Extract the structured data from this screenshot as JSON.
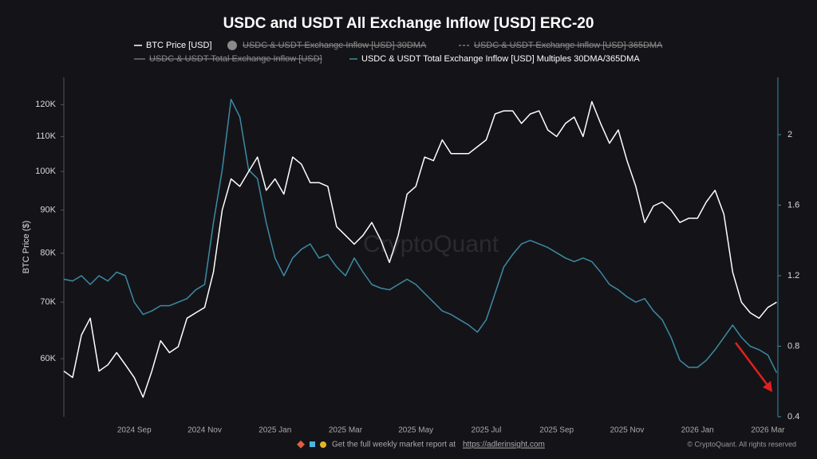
{
  "chart_data": {
    "type": "line",
    "title": "USDC and USDT All Exchange Inflow [USD] ERC-20",
    "y_label": "BTC Price ($)",
    "watermark": "CryptoQuant",
    "footer": {
      "text": "Get the full weekly market report at",
      "link": "https://adlerinsight.com",
      "copyright": "© CryptoQuant. All rights reserved"
    },
    "log_y": true,
    "categories": [
      null,
      null,
      null,
      null,
      null,
      null,
      null,
      null,
      "2024 Sep",
      null,
      null,
      null,
      null,
      null,
      null,
      null,
      "2024 Nov",
      null,
      null,
      null,
      null,
      null,
      null,
      null,
      "2025 Jan",
      null,
      null,
      null,
      null,
      null,
      null,
      null,
      "2025 Mar",
      null,
      null,
      null,
      null,
      null,
      null,
      null,
      "2025 May",
      null,
      null,
      null,
      null,
      null,
      null,
      null,
      "2025 Jul",
      null,
      null,
      null,
      null,
      null,
      null,
      null,
      "2025 Sep",
      null,
      null,
      null,
      null,
      null,
      null,
      null,
      "2025 Nov",
      null,
      null,
      null,
      null,
      null,
      null,
      null,
      "2026 Jan",
      null,
      null,
      null,
      null,
      null,
      null,
      null,
      "2026 Mar",
      null
    ],
    "series": [
      {
        "name": "BTC Price [USD]",
        "color": "#ffffff",
        "axis": "y",
        "values": [
          58000,
          57000,
          64000,
          67000,
          58000,
          59000,
          61000,
          59000,
          57000,
          54000,
          58000,
          63000,
          61000,
          62000,
          67000,
          68000,
          69000,
          76000,
          90000,
          98000,
          96000,
          100000,
          104000,
          95000,
          98000,
          94000,
          104000,
          102000,
          97000,
          97000,
          96000,
          86000,
          84000,
          82000,
          84000,
          87000,
          83000,
          78000,
          84000,
          94000,
          96000,
          104000,
          103000,
          109000,
          105000,
          105000,
          105000,
          107000,
          109000,
          117000,
          118000,
          118000,
          114000,
          117000,
          118000,
          112000,
          110000,
          114000,
          116000,
          110000,
          121000,
          114000,
          108000,
          112000,
          103000,
          96000,
          87000,
          91000,
          92000,
          90000,
          87000,
          88000,
          88000,
          92000,
          95000,
          89000,
          76000,
          70000,
          68000,
          67000,
          69000,
          70000
        ]
      },
      {
        "name": "USDC & USDT Total Exchange Inflow [USD] Multiples 30DMA/365DMA",
        "color": "#3d8aa5",
        "axis": "y2",
        "values": [
          1.18,
          1.17,
          1.2,
          1.15,
          1.2,
          1.17,
          1.22,
          1.2,
          1.05,
          0.98,
          1.0,
          1.03,
          1.03,
          1.05,
          1.07,
          1.12,
          1.15,
          1.5,
          1.8,
          2.2,
          2.1,
          1.8,
          1.75,
          1.5,
          1.3,
          1.2,
          1.3,
          1.35,
          1.38,
          1.3,
          1.32,
          1.25,
          1.2,
          1.3,
          1.22,
          1.15,
          1.13,
          1.12,
          1.15,
          1.18,
          1.15,
          1.1,
          1.05,
          1.0,
          0.98,
          0.95,
          0.92,
          0.88,
          0.95,
          1.1,
          1.25,
          1.32,
          1.38,
          1.4,
          1.38,
          1.36,
          1.33,
          1.3,
          1.28,
          1.3,
          1.28,
          1.22,
          1.15,
          1.12,
          1.08,
          1.05,
          1.07,
          1.0,
          0.95,
          0.85,
          0.72,
          0.68,
          0.68,
          0.72,
          0.78,
          0.85,
          0.92,
          0.85,
          0.8,
          0.78,
          0.75,
          0.65
        ]
      }
    ],
    "hidden_series": [
      {
        "name": "USDC & USDT Exchange Inflow [USD] 30DMA",
        "marker": "dot"
      },
      {
        "name": "USDC & USDT Exchange Inflow [USD] 365DMA",
        "marker": "dash"
      },
      {
        "name": "USDC & USDT Total Exchange Inflow [USD]",
        "marker": "line"
      }
    ],
    "ylim": [
      51200,
      129300
    ],
    "yticks": [
      {
        "value": 60000,
        "label": "60K"
      },
      {
        "value": 70000,
        "label": "70K"
      },
      {
        "value": 80000,
        "label": "80K"
      },
      {
        "value": 90000,
        "label": "90K"
      },
      {
        "value": 100000,
        "label": "100K"
      },
      {
        "value": 110000,
        "label": "110K"
      },
      {
        "value": 120000,
        "label": "120K"
      }
    ],
    "y2lim": [
      0.4,
      2.325
    ],
    "y2ticks": [
      0.4,
      0.8,
      1.2,
      1.6,
      2
    ]
  }
}
